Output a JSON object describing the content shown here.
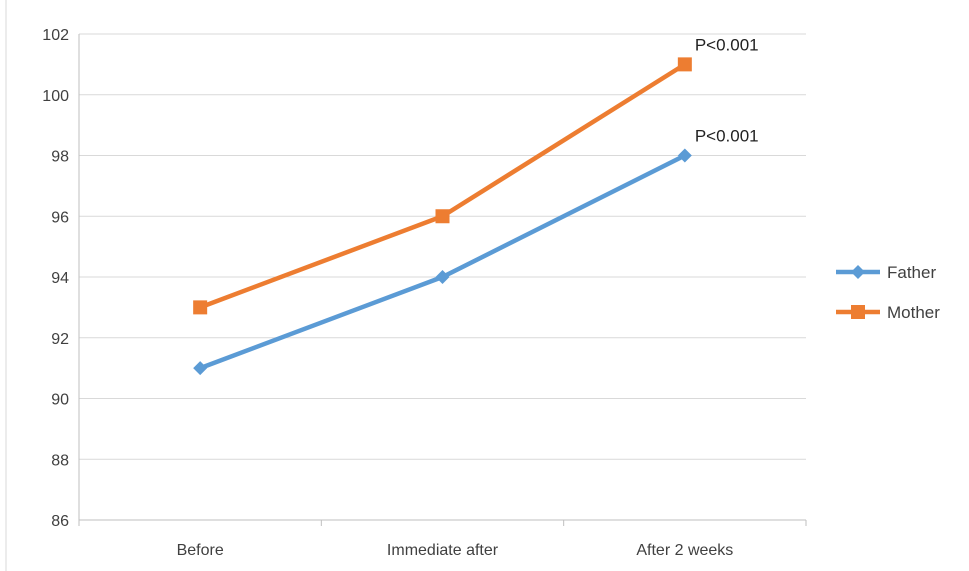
{
  "chart_data": {
    "type": "line",
    "categories": [
      "Before",
      "Immediate after",
      "After 2 weeks"
    ],
    "series": [
      {
        "name": "Father",
        "values": [
          91,
          94,
          98
        ],
        "color": "#5B9BD5",
        "marker": "diamond"
      },
      {
        "name": "Mother",
        "values": [
          93,
          96,
          101
        ],
        "color": "#ED7D31",
        "marker": "square"
      }
    ],
    "ylim": [
      86,
      102
    ],
    "yticks": [
      86,
      88,
      90,
      92,
      94,
      96,
      98,
      100,
      102
    ],
    "grid": true,
    "legend_position": "right",
    "annotations": [
      {
        "series": "Father",
        "category": "After 2 weeks",
        "text": "P<0.001"
      },
      {
        "series": "Mother",
        "category": "After 2 weeks",
        "text": "P<0.001"
      }
    ]
  }
}
